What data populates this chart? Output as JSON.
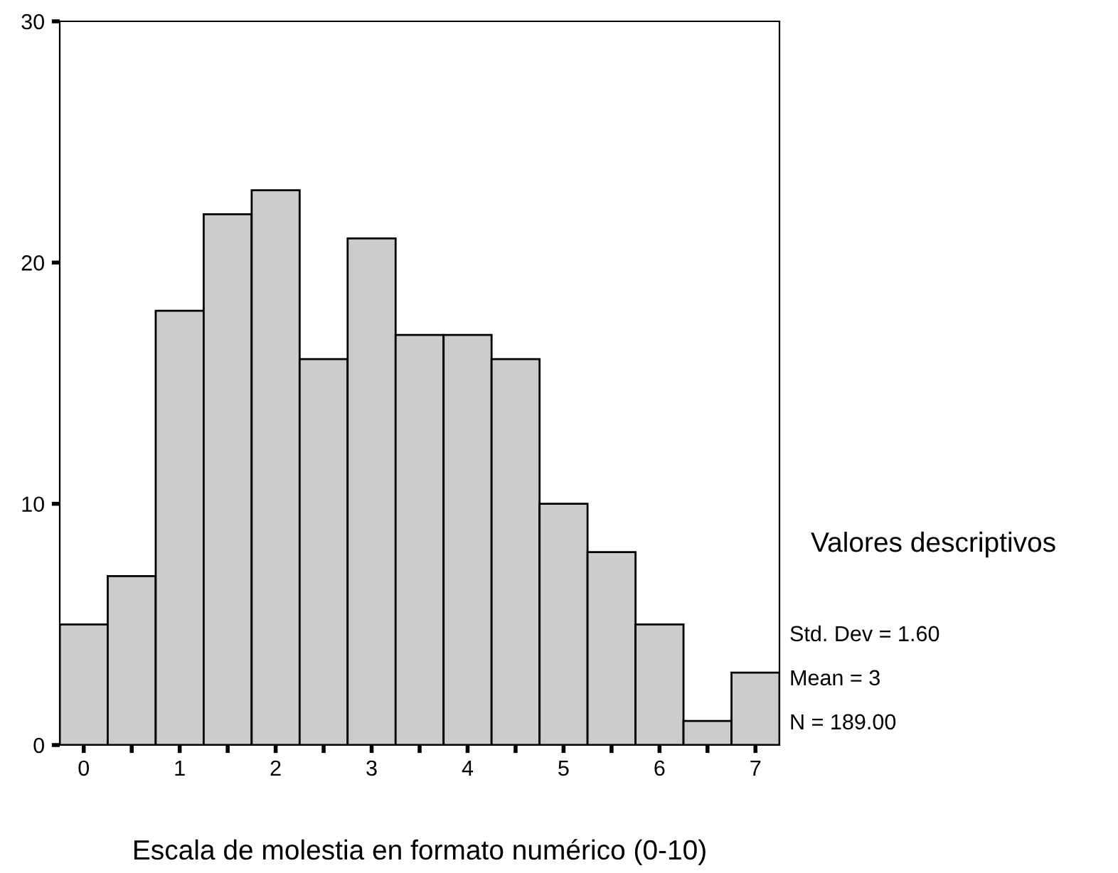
{
  "chart_data": {
    "type": "histogram",
    "xlabel": "Escala de molestia en formato numérico (0-10)",
    "bins": [
      -0.25,
      0.25,
      0.75,
      1.25,
      1.75,
      2.25,
      2.75,
      3.25,
      3.75,
      4.25,
      4.75,
      5.25,
      5.75,
      6.25,
      6.75,
      7.25
    ],
    "values": [
      5,
      7,
      18,
      22,
      23,
      16,
      21,
      17,
      17,
      16,
      10,
      8,
      5,
      1,
      3
    ],
    "color": "#cccccc",
    "xlim": [
      -0.25,
      7.25
    ],
    "ylim": [
      0,
      30
    ],
    "xticks": [
      0,
      {
        "value": 0.5,
        "label": null
      },
      1,
      {
        "value": 1.5,
        "label": null
      },
      2,
      {
        "value": 2.5,
        "label": null
      },
      3,
      {
        "value": 3.5,
        "label": null
      },
      4,
      {
        "value": 4.5,
        "label": null
      },
      5,
      {
        "value": 5.5,
        "label": null
      },
      6,
      {
        "value": 6.5,
        "label": null
      },
      7
    ],
    "yticks": [
      0,
      10,
      20,
      30
    ],
    "grid": false,
    "legend": false,
    "annotations": [
      "Valores descriptivos",
      "Std. Dev = 1.60",
      "Mean = 3",
      "N = 189.00"
    ]
  }
}
